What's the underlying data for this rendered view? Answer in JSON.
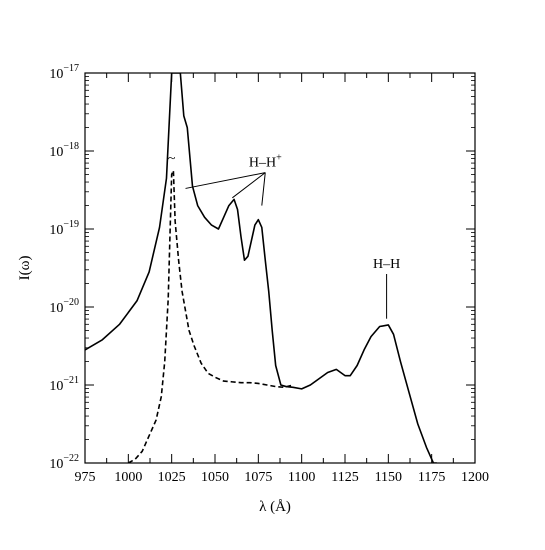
{
  "chart_data": {
    "type": "line",
    "xlabel": "λ (Å)",
    "ylabel": "I(ω)",
    "xlim": [
      975,
      1200
    ],
    "ylim_log10": [
      -22,
      -17
    ],
    "y_scale": "log",
    "grid": false,
    "x_ticks": [
      975,
      1000,
      1025,
      1050,
      1075,
      1100,
      1125,
      1150,
      1175,
      1200
    ],
    "y_ticks": [
      {
        "base": "10",
        "exp": "−22"
      },
      {
        "base": "10",
        "exp": "−21"
      },
      {
        "base": "10",
        "exp": "−20"
      },
      {
        "base": "10",
        "exp": "−19"
      },
      {
        "base": "10",
        "exp": "−18"
      },
      {
        "base": "10",
        "exp": "−17"
      }
    ],
    "series": [
      {
        "style": "solid",
        "color": "#000000",
        "x": [
          975,
          985,
          995,
          1005,
          1012,
          1018,
          1022,
          1025,
          1030,
          1032,
          1034,
          1037,
          1040,
          1044,
          1048,
          1052,
          1055,
          1058,
          1061,
          1063,
          1065,
          1067,
          1069,
          1071,
          1073,
          1075,
          1077,
          1079,
          1081,
          1083,
          1085,
          1088,
          1091,
          1095,
          1100,
          1105,
          1110,
          1115,
          1120,
          1125,
          1128,
          1132,
          1136,
          1140,
          1145,
          1150,
          1153,
          1157,
          1162,
          1167,
          1172,
          1176,
          1178
        ],
        "y_log10": [
          -20.55,
          -20.42,
          -20.22,
          -19.92,
          -19.55,
          -18.98,
          -18.35,
          -17.0,
          -17.0,
          -17.55,
          -17.7,
          -18.45,
          -18.7,
          -18.85,
          -18.95,
          -19.0,
          -18.85,
          -18.7,
          -18.62,
          -18.75,
          -19.1,
          -19.4,
          -19.35,
          -19.15,
          -18.95,
          -18.88,
          -18.98,
          -19.4,
          -19.8,
          -20.3,
          -20.75,
          -21.0,
          -21.02,
          -21.03,
          -21.05,
          -21.0,
          -20.92,
          -20.84,
          -20.8,
          -20.88,
          -20.88,
          -20.75,
          -20.55,
          -20.38,
          -20.25,
          -20.23,
          -20.35,
          -20.7,
          -21.1,
          -21.5,
          -21.8,
          -22.0,
          -22.0
        ]
      },
      {
        "style": "dashed",
        "color": "#000000",
        "x": [
          1000,
          1004,
          1008,
          1012,
          1016,
          1019,
          1021,
          1023,
          1025,
          1026,
          1027,
          1029,
          1031,
          1033,
          1035,
          1038,
          1042,
          1046,
          1050,
          1055,
          1060,
          1065,
          1070,
          1075,
          1080,
          1085,
          1090,
          1095
        ],
        "y_log10": [
          -22.0,
          -21.95,
          -21.85,
          -21.65,
          -21.45,
          -21.15,
          -20.7,
          -19.9,
          -18.3,
          -18.25,
          -18.9,
          -19.4,
          -19.8,
          -20.05,
          -20.3,
          -20.5,
          -20.72,
          -20.85,
          -20.9,
          -20.95,
          -20.96,
          -20.97,
          -20.97,
          -20.98,
          -21.0,
          -21.02,
          -21.03,
          -21.0
        ]
      }
    ],
    "annotations": [
      {
        "text": "H–H",
        "superscript": "+",
        "points_to": [
          [
            1033,
            -18.48
          ],
          [
            1060,
            -18.6
          ],
          [
            1077,
            -18.7
          ]
        ],
        "label_at": [
          1079,
          -18.2
        ]
      },
      {
        "text": "H–H",
        "superscript": "",
        "points_to": [
          [
            1149,
            -20.15
          ]
        ],
        "label_at": [
          1149,
          -19.5
        ]
      },
      {
        "text": "~",
        "superscript": "",
        "points_to": [],
        "label_at": [
          1025,
          -18.15
        ]
      }
    ]
  }
}
